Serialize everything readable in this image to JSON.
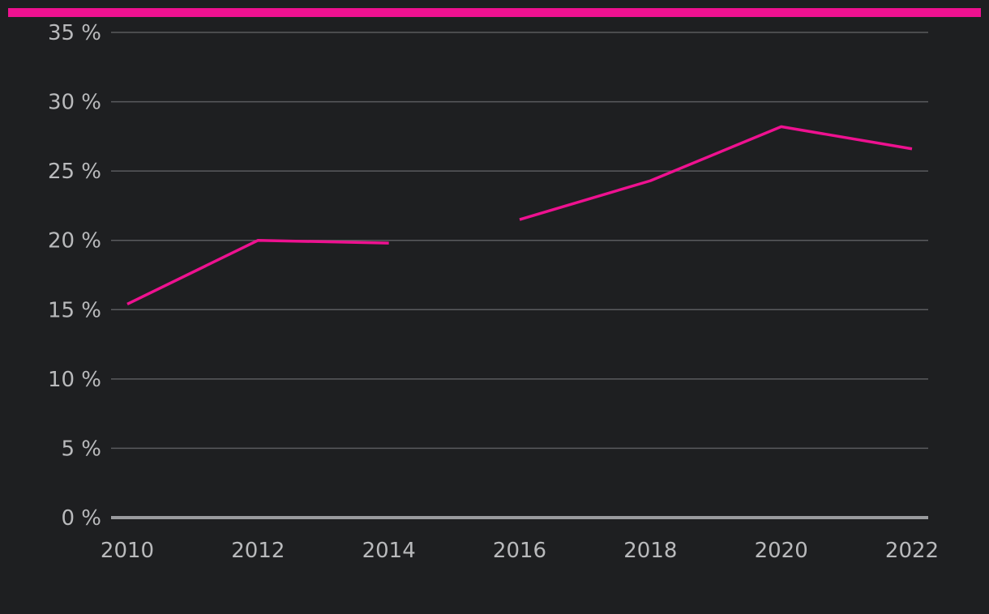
{
  "colors": {
    "background": "#1e1f21",
    "accent": "#ee1190",
    "grid": "#5a5b5e",
    "baseline": "#9a9b9e",
    "tick_text": "#b9babc"
  },
  "chart_data": {
    "type": "line",
    "title": "",
    "xlabel": "",
    "ylabel": "",
    "x": [
      2010,
      2012,
      2014,
      2016,
      2018,
      2020,
      2022
    ],
    "series": [
      {
        "values": [
          15.4,
          20.0,
          19.8,
          null,
          null,
          null,
          null
        ]
      },
      {
        "values": [
          null,
          null,
          null,
          21.5,
          24.3,
          28.2,
          26.6
        ]
      }
    ],
    "x_ticks": [
      "2010",
      "2012",
      "2014",
      "2016",
      "2018",
      "2020",
      "2022"
    ],
    "y_ticks": [
      0,
      5,
      10,
      15,
      20,
      25,
      30,
      35
    ],
    "y_tick_labels": [
      "0 %",
      "5 %",
      "10 %",
      "15 %",
      "20 %",
      "25 %",
      "30 %",
      "35 %"
    ],
    "ylim": [
      0,
      35
    ],
    "xlim": [
      2010,
      2022
    ],
    "grid": true,
    "legend": "none"
  }
}
